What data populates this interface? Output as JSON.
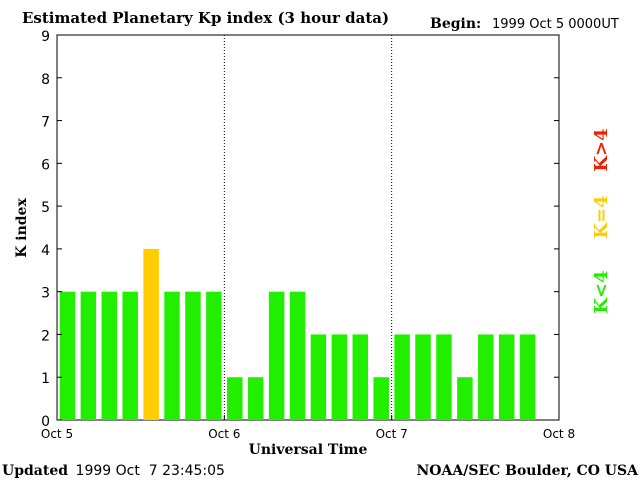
{
  "chart_data": {
    "type": "bar",
    "title": "Estimated Planetary Kp index (3 hour data)",
    "begin_label": "Begin:",
    "begin_value": "1999 Oct 5 0000UT",
    "xlabel": "Universal Time",
    "ylabel": "K index",
    "ylim": [
      0,
      9
    ],
    "yticks": [
      "0",
      "1",
      "2",
      "3",
      "4",
      "5",
      "6",
      "7",
      "8",
      "9"
    ],
    "xticks": [
      "Oct 5",
      "Oct 6",
      "Oct 7",
      "Oct 8"
    ],
    "xlim_days": 3,
    "bars_per_day": 8,
    "values": [
      3,
      3,
      3,
      3,
      4,
      3,
      3,
      3,
      1,
      1,
      3,
      3,
      2,
      2,
      2,
      1,
      2,
      2,
      2,
      1,
      2,
      2,
      2
    ],
    "legend": [
      {
        "label": "K<4",
        "color": "#22ee00"
      },
      {
        "label": "K=4",
        "color": "#ffcc00"
      },
      {
        "label": "K>4",
        "color": "#ee2200"
      }
    ],
    "colors": {
      "low": "#22ee00",
      "equal": "#ffcc00",
      "high": "#ee2200"
    },
    "grid": "vertical dotted lines at day boundaries"
  },
  "footer": {
    "updated_label": "Updated",
    "updated_value": "1999 Oct  7 23:45:05",
    "source": "NOAA/SEC Boulder, CO USA"
  }
}
